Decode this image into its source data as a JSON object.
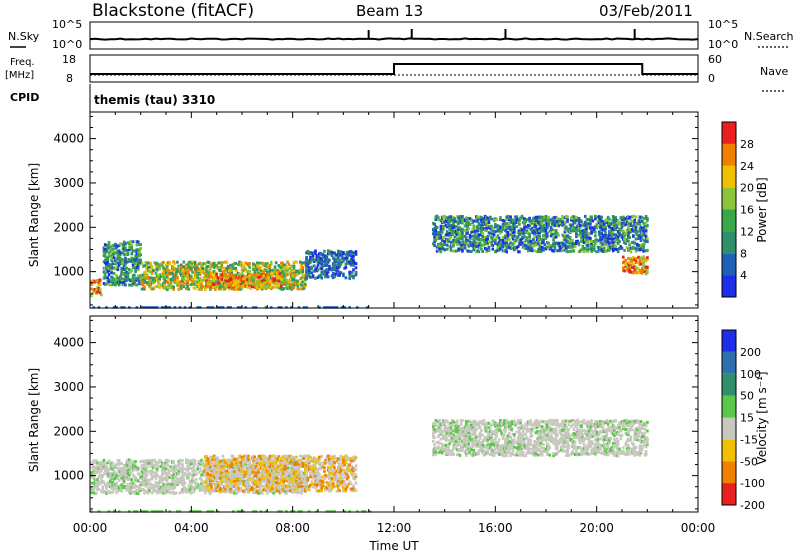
{
  "header": {
    "site": "Blackstone (fitACF)",
    "beam": "Beam 13",
    "date": "03/Feb/2011"
  },
  "top_panels": {
    "sky_label": "N.Sky",
    "sky_ticks": [
      "10^5",
      "10^0"
    ],
    "search_label": "N.Search",
    "search_ticks": [
      "10^5",
      "10^0"
    ],
    "freq_label": "Freq.",
    "freq_unit": "[MHz]",
    "freq_ticks": [
      "18",
      "8"
    ],
    "nave_label": "Nave",
    "nave_ticks": [
      "60",
      "0"
    ],
    "cpid_label": "CPID",
    "program": "themis (tau) 3310"
  },
  "chart_data": [
    {
      "type": "heatmap",
      "title": "",
      "xlabel": "",
      "ylabel": "Slant Range [km]",
      "x_ticks": [
        "00:00",
        "04:00",
        "08:00",
        "12:00",
        "16:00",
        "20:00",
        "00:00"
      ],
      "y_ticks": [
        "1000",
        "2000",
        "3000",
        "4000"
      ],
      "xlim_hours": [
        0,
        24
      ],
      "ylim_km": [
        180,
        4600
      ],
      "colorbar": {
        "label": "Power [dB]",
        "ticks": [
          "4",
          "8",
          "12",
          "16",
          "20",
          "24",
          "28"
        ],
        "colors": [
          "#1e2ee6",
          "#2060b8",
          "#2f8f6a",
          "#3aa84a",
          "#8cc43a",
          "#f0c000",
          "#f08000",
          "#e82020"
        ]
      },
      "echo_regions": [
        {
          "t_start": 0.0,
          "t_end": 0.4,
          "r_lo": 500,
          "r_hi": 900,
          "level": "high"
        },
        {
          "t_start": 0.5,
          "t_end": 2.0,
          "r_lo": 750,
          "r_hi": 1700,
          "level": "low-mid"
        },
        {
          "t_start": 2.0,
          "t_end": 8.5,
          "r_lo": 650,
          "r_hi": 1250,
          "level": "mid-high"
        },
        {
          "t_start": 4.5,
          "t_end": 7.5,
          "r_lo": 700,
          "r_hi": 1000,
          "level": "high"
        },
        {
          "t_start": 8.5,
          "t_end": 10.5,
          "r_lo": 900,
          "r_hi": 1500,
          "level": "low"
        },
        {
          "t_start": 13.5,
          "t_end": 22.0,
          "r_lo": 1500,
          "r_hi": 2300,
          "level": "low-mid"
        },
        {
          "t_start": 21.0,
          "t_end": 22.0,
          "r_lo": 1000,
          "r_hi": 1400,
          "level": "high"
        }
      ]
    },
    {
      "type": "heatmap",
      "title": "",
      "xlabel": "Time UT",
      "ylabel": "Slant Range [km]",
      "x_ticks": [
        "00:00",
        "04:00",
        "08:00",
        "12:00",
        "16:00",
        "20:00",
        "00:00"
      ],
      "y_ticks": [
        "1000",
        "2000",
        "3000",
        "4000"
      ],
      "xlim_hours": [
        0,
        24
      ],
      "ylim_km": [
        180,
        4600
      ],
      "colorbar": {
        "label": "Velocity [m s⁻¹]",
        "ticks": [
          "200",
          "100",
          "50",
          "15",
          "-15",
          "-50",
          "-100",
          "-200"
        ],
        "colors": [
          "#1e2ee6",
          "#2f6fb0",
          "#2f8f6a",
          "#5cc84a",
          "#c8c8c0",
          "#f0c000",
          "#f08000",
          "#e82020"
        ]
      },
      "echo_regions": [
        {
          "t_start": 0.0,
          "t_end": 8.5,
          "r_lo": 650,
          "r_hi": 1400,
          "level": "ground"
        },
        {
          "t_start": 4.5,
          "t_end": 10.5,
          "r_lo": 700,
          "r_hi": 1500,
          "level": "negative"
        },
        {
          "t_start": 13.5,
          "t_end": 22.0,
          "r_lo": 1500,
          "r_hi": 2300,
          "level": "ground"
        }
      ]
    }
  ]
}
